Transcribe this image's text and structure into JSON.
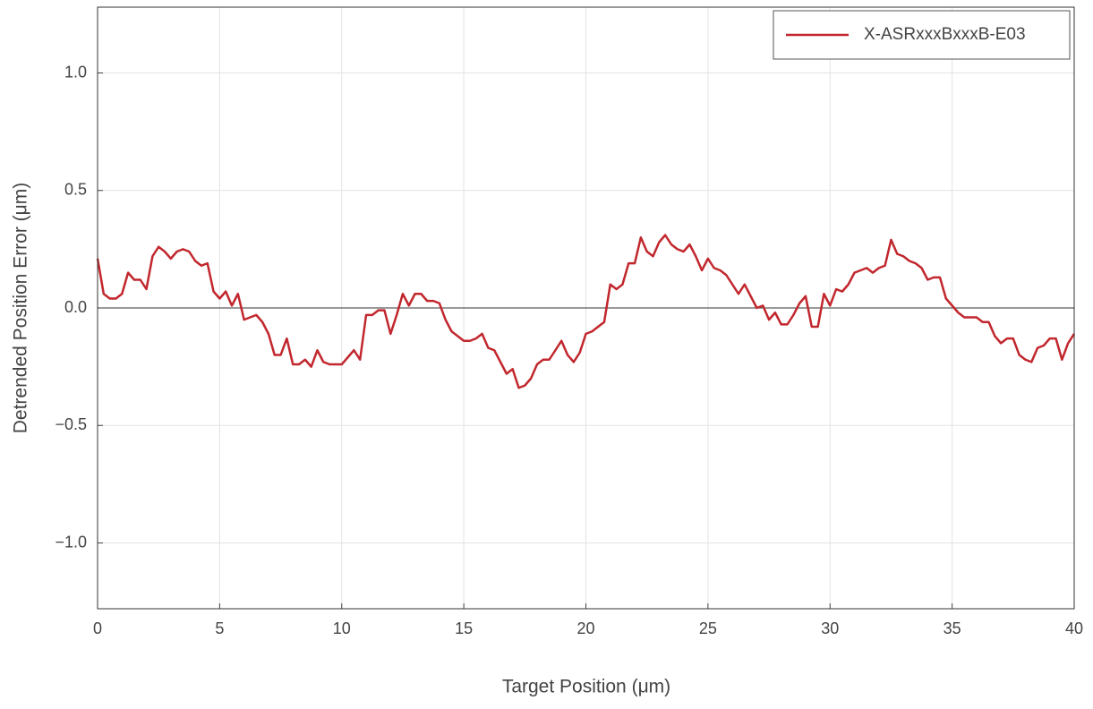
{
  "chart_data": {
    "type": "line",
    "xlabel": "Target Position (μm)",
    "ylabel": "Detrended Position Error (μm)",
    "x": [
      0,
      0.25,
      0.5,
      0.75,
      1,
      1.25,
      1.5,
      1.75,
      2,
      2.25,
      2.5,
      2.75,
      3,
      3.25,
      3.5,
      3.75,
      4,
      4.25,
      4.5,
      4.75,
      5,
      5.25,
      5.5,
      5.75,
      6,
      6.25,
      6.5,
      6.75,
      7,
      7.25,
      7.5,
      7.75,
      8,
      8.25,
      8.5,
      8.75,
      9,
      9.25,
      9.5,
      9.75,
      10,
      10.25,
      10.5,
      10.75,
      11,
      11.25,
      11.5,
      11.75,
      12,
      12.25,
      12.5,
      12.75,
      13,
      13.25,
      13.5,
      13.75,
      14,
      14.25,
      14.5,
      14.75,
      15,
      15.25,
      15.5,
      15.75,
      16,
      16.25,
      16.5,
      16.75,
      17,
      17.25,
      17.5,
      17.75,
      18,
      18.25,
      18.5,
      18.75,
      19,
      19.25,
      19.5,
      19.75,
      20,
      20.25,
      20.5,
      20.75,
      21,
      21.25,
      21.5,
      21.75,
      22,
      22.25,
      22.5,
      22.75,
      23,
      23.25,
      23.5,
      23.75,
      24,
      24.25,
      24.5,
      24.75,
      25,
      25.25,
      25.5,
      25.75,
      26,
      26.25,
      26.5,
      26.75,
      27,
      27.25,
      27.5,
      27.75,
      28,
      28.25,
      28.5,
      28.75,
      29,
      29.25,
      29.5,
      29.75,
      30,
      30.25,
      30.5,
      30.75,
      31,
      31.25,
      31.5,
      31.75,
      32,
      32.25,
      32.5,
      32.75,
      33,
      33.25,
      33.5,
      33.75,
      34,
      34.25,
      34.5,
      34.75,
      35,
      35.25,
      35.5,
      35.75,
      36,
      36.25,
      36.5,
      36.75,
      37,
      37.25,
      37.5,
      37.75,
      38,
      38.25,
      38.5,
      38.75,
      39,
      39.25,
      39.5,
      39.75,
      40
    ],
    "series": [
      {
        "name": "X-ASRxxxBxxxB-E03",
        "color": "#c1272d",
        "values": [
          0.21,
          0.06,
          0.04,
          0.04,
          0.06,
          0.15,
          0.12,
          0.12,
          0.08,
          0.22,
          0.26,
          0.24,
          0.21,
          0.24,
          0.25,
          0.24,
          0.2,
          0.18,
          0.19,
          0.07,
          0.04,
          0.07,
          0.01,
          0.06,
          -0.05,
          -0.04,
          -0.03,
          -0.06,
          -0.11,
          -0.2,
          -0.2,
          -0.13,
          -0.24,
          -0.24,
          -0.22,
          -0.25,
          -0.18,
          -0.23,
          -0.24,
          -0.24,
          -0.24,
          -0.21,
          -0.18,
          -0.22,
          -0.03,
          -0.03,
          -0.01,
          -0.01,
          -0.11,
          -0.03,
          0.06,
          0.01,
          0.06,
          0.06,
          0.03,
          0.03,
          0.02,
          -0.05,
          -0.1,
          -0.12,
          -0.14,
          -0.14,
          -0.13,
          -0.11,
          -0.17,
          -0.18,
          -0.23,
          -0.28,
          -0.26,
          -0.34,
          -0.33,
          -0.3,
          -0.24,
          -0.22,
          -0.22,
          -0.18,
          -0.14,
          -0.2,
          -0.23,
          -0.19,
          -0.11,
          -0.1,
          -0.08,
          -0.06,
          0.1,
          0.08,
          0.1,
          0.19,
          0.19,
          0.3,
          0.24,
          0.22,
          0.28,
          0.31,
          0.27,
          0.25,
          0.24,
          0.27,
          0.22,
          0.16,
          0.21,
          0.17,
          0.16,
          0.14,
          0.1,
          0.06,
          0.1,
          0.05,
          0,
          0.01,
          -0.05,
          -0.02,
          -0.07,
          -0.07,
          -0.03,
          0.02,
          0.05,
          -0.08,
          -0.08,
          0.06,
          0.01,
          0.08,
          0.07,
          0.1,
          0.15,
          0.16,
          0.17,
          0.15,
          0.17,
          0.18,
          0.29,
          0.23,
          0.22,
          0.2,
          0.19,
          0.17,
          0.12,
          0.13,
          0.13,
          0.04,
          0.01,
          -0.02,
          -0.04,
          -0.04,
          -0.04,
          -0.06,
          -0.06,
          -0.12,
          -0.15,
          -0.13,
          -0.13,
          -0.2,
          -0.22,
          -0.23,
          -0.17,
          -0.16,
          -0.13,
          -0.13,
          -0.22,
          -0.15,
          -0.11
        ]
      }
    ],
    "xlim": [
      0,
      40
    ],
    "xticks": [
      0,
      5,
      10,
      15,
      20,
      25,
      30,
      35,
      40
    ],
    "ylim": [
      -1.28,
      1.28
    ],
    "yticks": [
      {
        "value": -1,
        "label": "−1.0"
      },
      {
        "value": -0.5,
        "label": "−0.5"
      },
      {
        "value": 0,
        "label": "0.0"
      },
      0.5,
      {
        "value": 1,
        "label": "1.0"
      }
    ],
    "hline": 0,
    "grid": true,
    "legend": "upper right"
  }
}
